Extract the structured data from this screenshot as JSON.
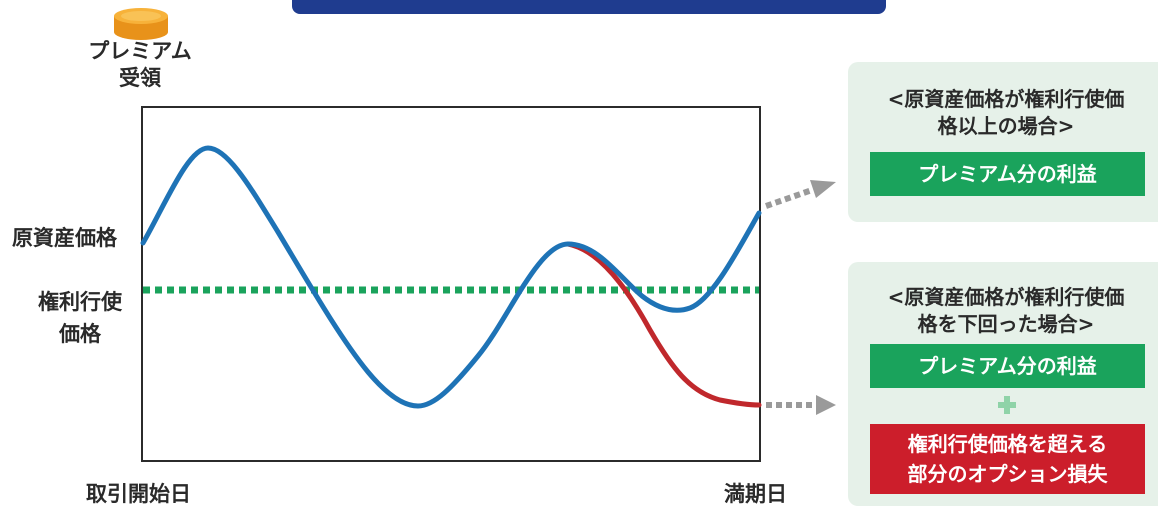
{
  "premium": {
    "line1": "プレミアム",
    "line2": "受領"
  },
  "axis": {
    "underlying_price": "原資産価格",
    "strike_line1": "権利行使",
    "strike_line2": "価格",
    "start_date": "取引開始日",
    "maturity_date": "満期日"
  },
  "panels": {
    "above": {
      "title_line1": "<原資産価格が権利行使価",
      "title_line2": "格以上の場合>",
      "result": "プレミアム分の利益"
    },
    "below": {
      "title_line1": "<原資産価格が権利行使価",
      "title_line2": "格を下回った場合>",
      "result_profit": "プレミアム分の利益",
      "result_loss_line1": "権利行使価格を超える",
      "result_loss_line2": "部分のオプション損失"
    }
  },
  "colors": {
    "price_path_up": "#1e73b6",
    "price_path_down": "#c0282c",
    "strike_line": "#1aa35c",
    "banner": "#1f3c8f",
    "profit_tag": "#1aa35c",
    "loss_tag": "#cc1e2b",
    "panel_background": "#e6f1e9",
    "arrow": "#9a9a9a",
    "coin": "#f0a21f"
  },
  "icons": {
    "coin": "coin-stack-icon",
    "plus": "plus-icon",
    "arrow": "dotted-arrow-icon"
  }
}
